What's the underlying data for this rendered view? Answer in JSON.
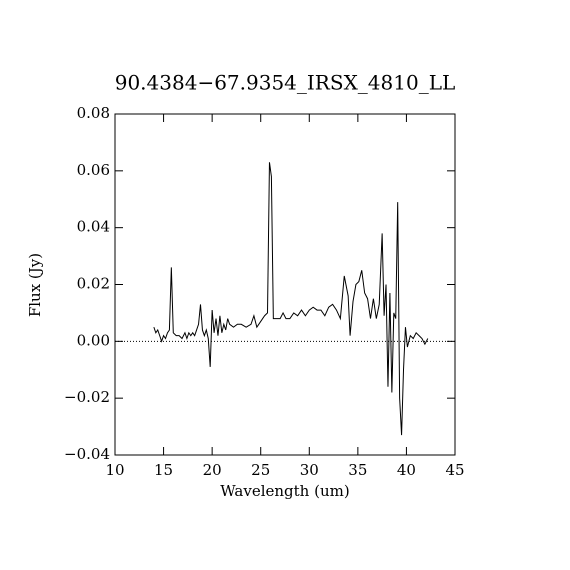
{
  "chart_data": {
    "type": "line",
    "title": "90.4384−67.9354_IRSX_4810_LL",
    "x_label": "Wavelength (um)",
    "y_label": "Flux (Jy)",
    "color": "#000000",
    "zero_line": true,
    "xlim": [
      10,
      45
    ],
    "xticks": [
      10,
      15,
      20,
      25,
      30,
      35,
      40,
      45
    ],
    "ylim": [
      -0.04,
      0.08
    ],
    "yticks": [
      {
        "value": -0.04,
        "label": "−0.04"
      },
      {
        "value": -0.02,
        "label": "−0.02"
      },
      {
        "value": 0,
        "label": "0.00"
      },
      {
        "value": 0.02,
        "label": "0.02"
      },
      {
        "value": 0.04,
        "label": "0.04"
      },
      {
        "value": 0.06,
        "label": "0.06"
      },
      {
        "value": 0.08,
        "label": "0.08"
      }
    ],
    "x": [
      14.0,
      14.2,
      14.4,
      14.6,
      14.8,
      15.0,
      15.2,
      15.4,
      15.6,
      15.8,
      16.0,
      16.3,
      16.6,
      16.9,
      17.2,
      17.4,
      17.6,
      17.8,
      18.0,
      18.2,
      18.4,
      18.6,
      18.8,
      19.0,
      19.2,
      19.4,
      19.6,
      19.8,
      20.0,
      20.2,
      20.4,
      20.6,
      20.8,
      21.0,
      21.2,
      21.4,
      21.6,
      21.8,
      22.2,
      22.6,
      23.0,
      23.5,
      24.0,
      24.3,
      24.6,
      25.0,
      25.4,
      25.7,
      25.9,
      26.1,
      26.3,
      26.6,
      27.0,
      27.3,
      27.6,
      28.0,
      28.4,
      28.8,
      29.2,
      29.6,
      30.0,
      30.4,
      30.8,
      31.2,
      31.6,
      32.0,
      32.4,
      32.8,
      33.2,
      33.6,
      34.0,
      34.2,
      34.5,
      34.8,
      35.1,
      35.4,
      35.7,
      36.0,
      36.3,
      36.6,
      36.9,
      37.2,
      37.5,
      37.7,
      37.9,
      38.1,
      38.3,
      38.5,
      38.7,
      38.9,
      39.1,
      39.3,
      39.5,
      39.7,
      39.9,
      40.1,
      40.4,
      40.7,
      41.0,
      41.3,
      41.6,
      41.9,
      42.2
    ],
    "values": [
      0.005,
      0.003,
      0.004,
      0.002,
      0.0,
      0.002,
      0.001,
      0.003,
      0.004,
      0.026,
      0.003,
      0.002,
      0.002,
      0.001,
      0.003,
      0.001,
      0.003,
      0.002,
      0.003,
      0.002,
      0.004,
      0.006,
      0.013,
      0.004,
      0.002,
      0.004,
      0.001,
      -0.009,
      0.011,
      0.003,
      0.008,
      0.002,
      0.009,
      0.003,
      0.006,
      0.004,
      0.008,
      0.006,
      0.005,
      0.006,
      0.006,
      0.005,
      0.006,
      0.009,
      0.005,
      0.007,
      0.009,
      0.01,
      0.063,
      0.058,
      0.008,
      0.008,
      0.008,
      0.01,
      0.008,
      0.008,
      0.01,
      0.009,
      0.011,
      0.009,
      0.011,
      0.012,
      0.011,
      0.011,
      0.009,
      0.012,
      0.013,
      0.011,
      0.008,
      0.023,
      0.016,
      0.002,
      0.014,
      0.02,
      0.021,
      0.025,
      0.017,
      0.015,
      0.008,
      0.015,
      0.008,
      0.013,
      0.038,
      0.009,
      0.02,
      -0.016,
      0.017,
      -0.018,
      0.01,
      0.008,
      0.049,
      -0.02,
      -0.033,
      -0.01,
      0.005,
      -0.002,
      0.002,
      0.001,
      0.003,
      0.002,
      0.001,
      -0.001,
      0.001
    ]
  }
}
